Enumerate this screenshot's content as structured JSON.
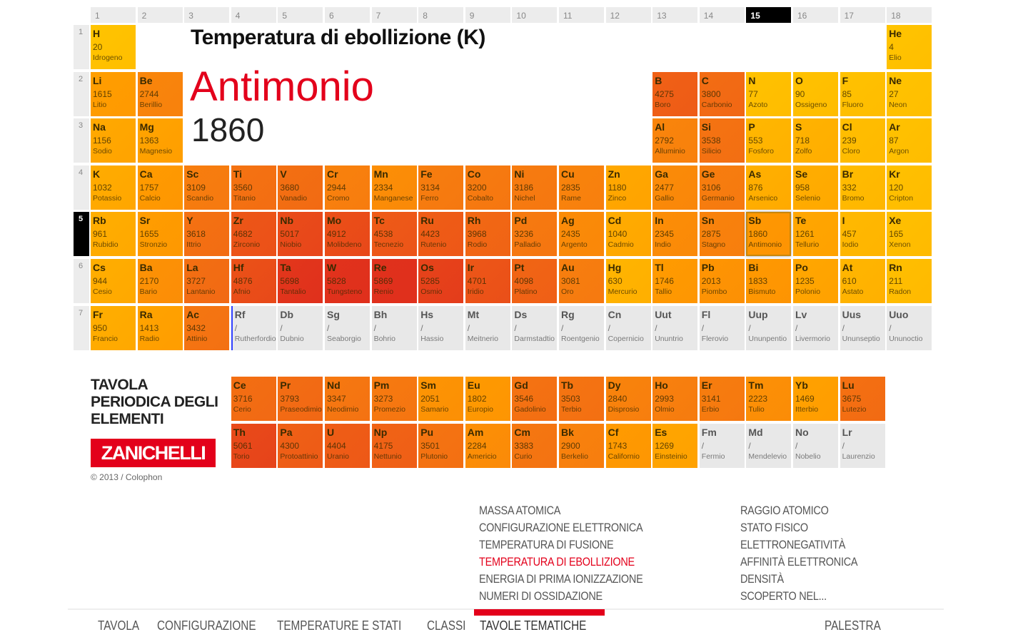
{
  "header": {
    "title": "Temperatura di ebollizione (K)",
    "selected_name": "Antimonio",
    "selected_value": "1860"
  },
  "groups": [
    "1",
    "2",
    "3",
    "4",
    "5",
    "6",
    "7",
    "8",
    "9",
    "10",
    "11",
    "12",
    "13",
    "14",
    "15",
    "16",
    "17",
    "18"
  ],
  "selected_group": "15",
  "periods": [
    "1",
    "2",
    "3",
    "4",
    "5",
    "6",
    "7"
  ],
  "selected_period": "5",
  "selected_symbol": "Sb",
  "elements": [
    [
      "H",
      "20",
      "Idrogeno",
      1,
      1
    ],
    [
      "He",
      "4",
      "Elio",
      1,
      18
    ],
    [
      "Li",
      "1615",
      "Litio",
      2,
      1
    ],
    [
      "Be",
      "2744",
      "Berillio",
      2,
      2
    ],
    [
      "B",
      "4275",
      "Boro",
      2,
      13
    ],
    [
      "C",
      "3800",
      "Carbonio",
      2,
      14
    ],
    [
      "N",
      "77",
      "Azoto",
      2,
      15
    ],
    [
      "O",
      "90",
      "Ossigeno",
      2,
      16
    ],
    [
      "F",
      "85",
      "Fluoro",
      2,
      17
    ],
    [
      "Ne",
      "27",
      "Neon",
      2,
      18
    ],
    [
      "Na",
      "1156",
      "Sodio",
      3,
      1
    ],
    [
      "Mg",
      "1363",
      "Magnesio",
      3,
      2
    ],
    [
      "Al",
      "2792",
      "Alluminio",
      3,
      13
    ],
    [
      "Si",
      "3538",
      "Silicio",
      3,
      14
    ],
    [
      "P",
      "553",
      "Fosforo",
      3,
      15
    ],
    [
      "S",
      "718",
      "Zolfo",
      3,
      16
    ],
    [
      "Cl",
      "239",
      "Cloro",
      3,
      17
    ],
    [
      "Ar",
      "87",
      "Argon",
      3,
      18
    ],
    [
      "K",
      "1032",
      "Potassio",
      4,
      1
    ],
    [
      "Ca",
      "1757",
      "Calcio",
      4,
      2
    ],
    [
      "Sc",
      "3109",
      "Scandio",
      4,
      3
    ],
    [
      "Ti",
      "3560",
      "Titanio",
      4,
      4
    ],
    [
      "V",
      "3680",
      "Vanadio",
      4,
      5
    ],
    [
      "Cr",
      "2944",
      "Cromo",
      4,
      6
    ],
    [
      "Mn",
      "2334",
      "Manganese",
      4,
      7
    ],
    [
      "Fe",
      "3134",
      "Ferro",
      4,
      8
    ],
    [
      "Co",
      "3200",
      "Cobalto",
      4,
      9
    ],
    [
      "Ni",
      "3186",
      "Nichel",
      4,
      10
    ],
    [
      "Cu",
      "2835",
      "Rame",
      4,
      11
    ],
    [
      "Zn",
      "1180",
      "Zinco",
      4,
      12
    ],
    [
      "Ga",
      "2477",
      "Gallio",
      4,
      13
    ],
    [
      "Ge",
      "3106",
      "Germanio",
      4,
      14
    ],
    [
      "As",
      "876",
      "Arsenico",
      4,
      15
    ],
    [
      "Se",
      "958",
      "Selenio",
      4,
      16
    ],
    [
      "Br",
      "332",
      "Bromo",
      4,
      17
    ],
    [
      "Kr",
      "120",
      "Cripton",
      4,
      18
    ],
    [
      "Rb",
      "961",
      "Rubidio",
      5,
      1
    ],
    [
      "Sr",
      "1655",
      "Stronzio",
      5,
      2
    ],
    [
      "Y",
      "3618",
      "Ittrio",
      5,
      3
    ],
    [
      "Zr",
      "4682",
      "Zirconio",
      5,
      4
    ],
    [
      "Nb",
      "5017",
      "Niobio",
      5,
      5
    ],
    [
      "Mo",
      "4912",
      "Molibdeno",
      5,
      6
    ],
    [
      "Tc",
      "4538",
      "Tecnezio",
      5,
      7
    ],
    [
      "Ru",
      "4423",
      "Rutenio",
      5,
      8
    ],
    [
      "Rh",
      "3968",
      "Rodio",
      5,
      9
    ],
    [
      "Pd",
      "3236",
      "Palladio",
      5,
      10
    ],
    [
      "Ag",
      "2435",
      "Argento",
      5,
      11
    ],
    [
      "Cd",
      "1040",
      "Cadmio",
      5,
      12
    ],
    [
      "In",
      "2345",
      "Indio",
      5,
      13
    ],
    [
      "Sn",
      "2875",
      "Stagno",
      5,
      14
    ],
    [
      "Sb",
      "1860",
      "Antimonio",
      5,
      15
    ],
    [
      "Te",
      "1261",
      "Tellurio",
      5,
      16
    ],
    [
      "I",
      "457",
      "Iodio",
      5,
      17
    ],
    [
      "Xe",
      "165",
      "Xenon",
      5,
      18
    ],
    [
      "Cs",
      "944",
      "Cesio",
      6,
      1
    ],
    [
      "Ba",
      "2170",
      "Bario",
      6,
      2
    ],
    [
      "La",
      "3727",
      "Lantanio",
      6,
      3
    ],
    [
      "Hf",
      "4876",
      "Afnio",
      6,
      4
    ],
    [
      "Ta",
      "5698",
      "Tantalio",
      6,
      5
    ],
    [
      "W",
      "5828",
      "Tungsteno",
      6,
      6
    ],
    [
      "Re",
      "5869",
      "Renio",
      6,
      7
    ],
    [
      "Os",
      "5285",
      "Osmio",
      6,
      8
    ],
    [
      "Ir",
      "4701",
      "Iridio",
      6,
      9
    ],
    [
      "Pt",
      "4098",
      "Platino",
      6,
      10
    ],
    [
      "Au",
      "3081",
      "Oro",
      6,
      11
    ],
    [
      "Hg",
      "630",
      "Mercurio",
      6,
      12
    ],
    [
      "Tl",
      "1746",
      "Tallio",
      6,
      13
    ],
    [
      "Pb",
      "2013",
      "Piombo",
      6,
      14
    ],
    [
      "Bi",
      "1833",
      "Bismuto",
      6,
      15
    ],
    [
      "Po",
      "1235",
      "Polonio",
      6,
      16
    ],
    [
      "At",
      "610",
      "Astato",
      6,
      17
    ],
    [
      "Rn",
      "211",
      "Radon",
      6,
      18
    ],
    [
      "Fr",
      "950",
      "Francio",
      7,
      1
    ],
    [
      "Ra",
      "1413",
      "Radio",
      7,
      2
    ],
    [
      "Ac",
      "3432",
      "Attinio",
      7,
      3
    ],
    [
      "Rf",
      "/",
      "Rutherfordio",
      7,
      4
    ],
    [
      "Db",
      "/",
      "Dubnio",
      7,
      5
    ],
    [
      "Sg",
      "/",
      "Seaborgio",
      7,
      6
    ],
    [
      "Bh",
      "/",
      "Bohrio",
      7,
      7
    ],
    [
      "Hs",
      "/",
      "Hassio",
      7,
      8
    ],
    [
      "Mt",
      "/",
      "Meitnerio",
      7,
      9
    ],
    [
      "Ds",
      "/",
      "Darmstadtio",
      7,
      10
    ],
    [
      "Rg",
      "/",
      "Roentgenio",
      7,
      11
    ],
    [
      "Cn",
      "/",
      "Copernicio",
      7,
      12
    ],
    [
      "Uut",
      "/",
      "Ununtrio",
      7,
      13
    ],
    [
      "Fl",
      "/",
      "Flerovio",
      7,
      14
    ],
    [
      "Uup",
      "/",
      "Ununpentio",
      7,
      15
    ],
    [
      "Lv",
      "/",
      "Livermorio",
      7,
      16
    ],
    [
      "Uus",
      "/",
      "Ununseptio",
      7,
      17
    ],
    [
      "Uuo",
      "/",
      "Ununoctio",
      7,
      18
    ],
    [
      "Ce",
      "3716",
      "Cerio",
      9,
      4
    ],
    [
      "Pr",
      "3793",
      "Praseodimio",
      9,
      5
    ],
    [
      "Nd",
      "3347",
      "Neodimio",
      9,
      6
    ],
    [
      "Pm",
      "3273",
      "Promezio",
      9,
      7
    ],
    [
      "Sm",
      "2051",
      "Samario",
      9,
      8
    ],
    [
      "Eu",
      "1802",
      "Europio",
      9,
      9
    ],
    [
      "Gd",
      "3546",
      "Gadolinio",
      9,
      10
    ],
    [
      "Tb",
      "3503",
      "Terbio",
      9,
      11
    ],
    [
      "Dy",
      "2840",
      "Disprosio",
      9,
      12
    ],
    [
      "Ho",
      "2993",
      "Olmio",
      9,
      13
    ],
    [
      "Er",
      "3141",
      "Erbio",
      9,
      14
    ],
    [
      "Tm",
      "2223",
      "Tulio",
      9,
      15
    ],
    [
      "Yb",
      "1469",
      "Itterbio",
      9,
      16
    ],
    [
      "Lu",
      "3675",
      "Lutezio",
      9,
      17
    ],
    [
      "Th",
      "5061",
      "Torio",
      10,
      4
    ],
    [
      "Pa",
      "4300",
      "Protoattinio",
      10,
      5
    ],
    [
      "U",
      "4404",
      "Uranio",
      10,
      6
    ],
    [
      "Np",
      "4175",
      "Nettunio",
      10,
      7
    ],
    [
      "Pu",
      "3501",
      "Plutonio",
      10,
      8
    ],
    [
      "Am",
      "2284",
      "Americio",
      10,
      9
    ],
    [
      "Cm",
      "3383",
      "Curio",
      10,
      10
    ],
    [
      "Bk",
      "2900",
      "Berkelio",
      10,
      11
    ],
    [
      "Cf",
      "1743",
      "Californio",
      10,
      12
    ],
    [
      "Es",
      "1269",
      "Einsteinio",
      10,
      13
    ],
    [
      "Fm",
      "/",
      "Fermio",
      10,
      14
    ],
    [
      "Md",
      "/",
      "Mendelevio",
      10,
      15
    ],
    [
      "No",
      "/",
      "Nobelio",
      10,
      16
    ],
    [
      "Lr",
      "/",
      "Laurenzio",
      10,
      17
    ]
  ],
  "brand": {
    "title": "TAVOLA PERIODICA DEGLI ELEMENTI",
    "logo": "ZANICHELLI",
    "colophon": "© 2013 / Colophon"
  },
  "themes_left": [
    "MASSA ATOMICA",
    "CONFIGURAZIONE ELETTRONICA",
    "TEMPERATURA DI FUSIONE",
    "TEMPERATURA DI EBOLLIZIONE",
    "ENERGIA DI PRIMA IONIZZAZIONE",
    "NUMERI DI OSSIDAZIONE"
  ],
  "themes_right": [
    "RAGGIO ATOMICO",
    "STATO FISICO",
    "ELETTRONEGATIVITÀ",
    "AFFINITÀ ELETTRONICA",
    "DENSITÀ",
    "SCOPERTO NEL..."
  ],
  "active_theme": "TEMPERATURA DI EBOLLIZIONE",
  "nav": [
    "TAVOLA",
    "CONFIGURAZIONE",
    "TEMPERATURE E STATI",
    "CLASSI",
    "TAVOLE TEMATICHE",
    "PALESTRA"
  ],
  "active_nav": "TAVOLE TEMATICHE",
  "colors": {
    "accent": "#e3001b",
    "unknown": "#e8e8e8",
    "low": "#ffc400",
    "high": "#e0301c"
  }
}
